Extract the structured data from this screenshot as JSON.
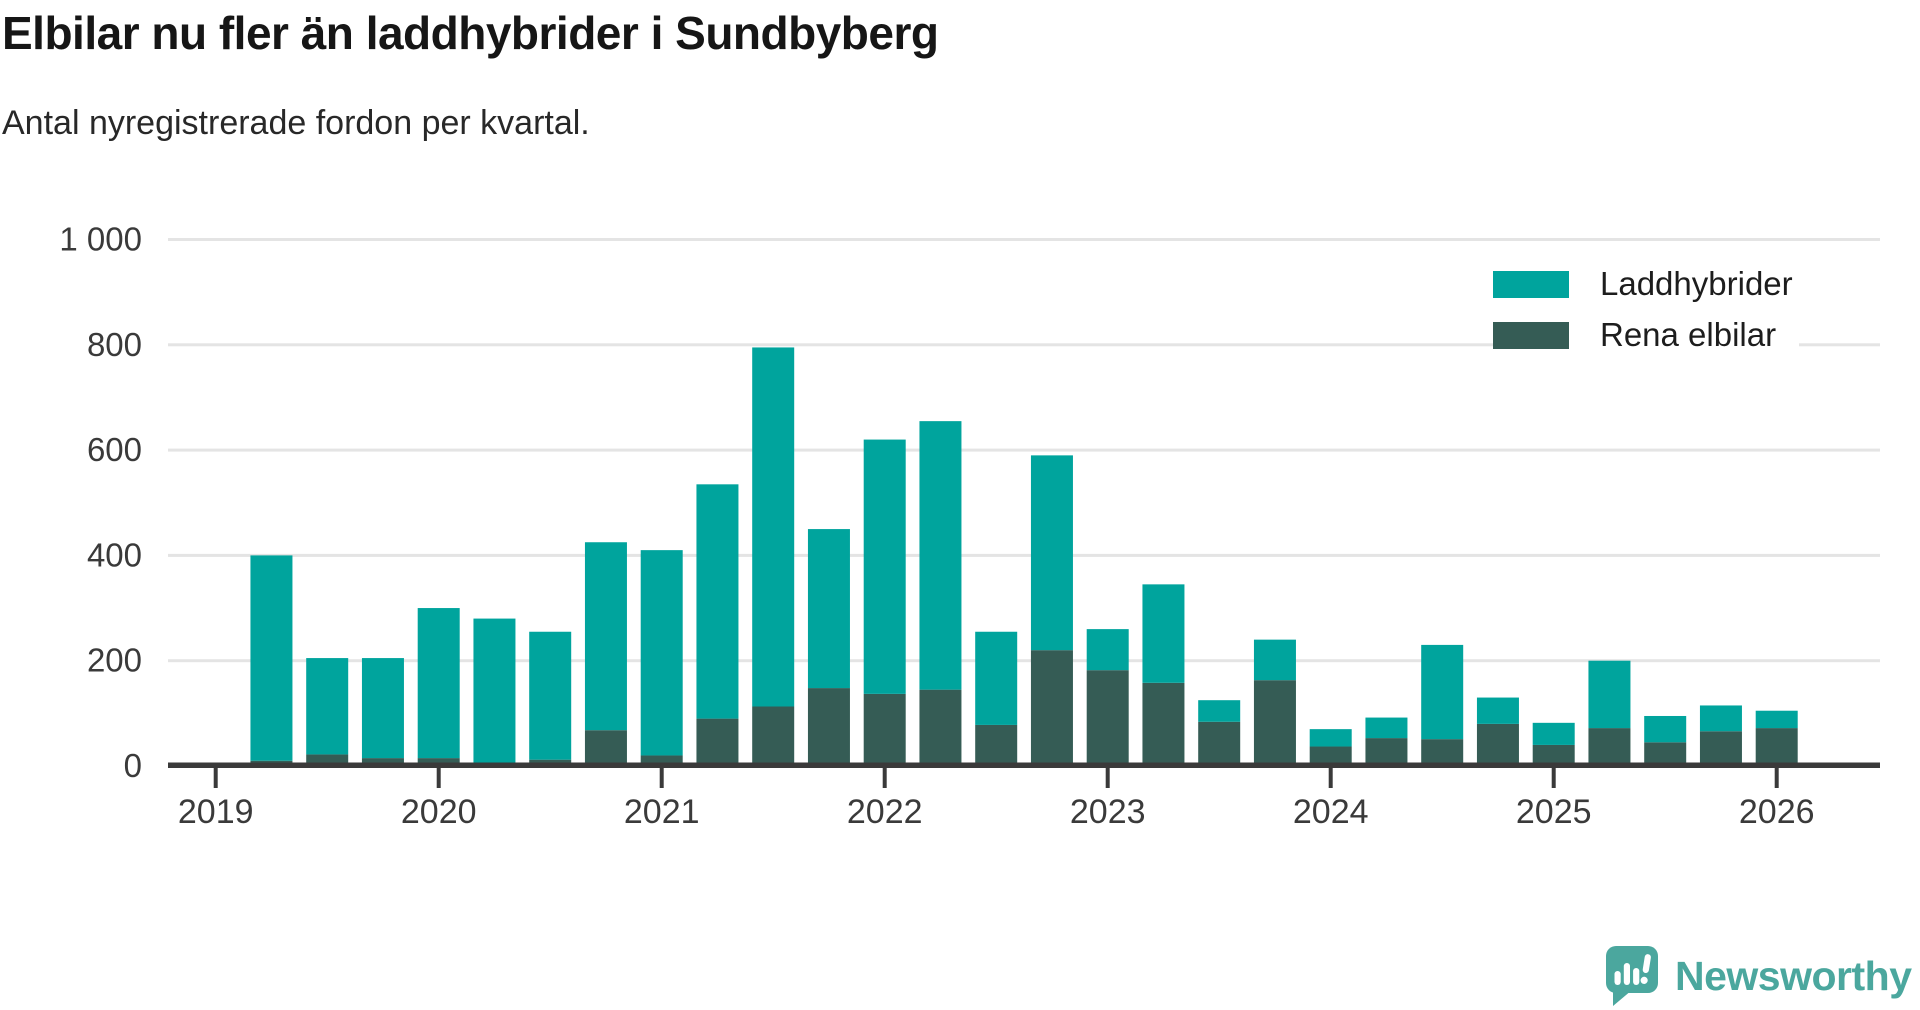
{
  "header": {
    "title": "Elbilar nu fler än laddhybrider i Sundbyberg",
    "subtitle": "Antal nyregistrerade fordon per kvartal."
  },
  "legend": {
    "items": [
      {
        "label": "Laddhybrider",
        "color": "#00a49d"
      },
      {
        "label": "Rena elbilar",
        "color": "#355c55"
      }
    ]
  },
  "y_axis": {
    "ticks": [
      {
        "label": "0",
        "value": 0
      },
      {
        "label": "200",
        "value": 200
      },
      {
        "label": "400",
        "value": 400
      },
      {
        "label": "600",
        "value": 600
      },
      {
        "label": "800",
        "value": 800
      },
      {
        "label": "1 000",
        "value": 1000
      }
    ]
  },
  "x_axis": {
    "years": [
      "2019",
      "2020",
      "2021",
      "2022",
      "2023",
      "2024",
      "2025",
      "2026"
    ]
  },
  "chart_data": {
    "type": "bar",
    "stacked": true,
    "title": "Elbilar nu fler än laddhybrider i Sundbyberg",
    "subtitle": "Antal nyregistrerade fordon per kvartal.",
    "categories": [
      "2019-Q2",
      "2019-Q3",
      "2019-Q4",
      "2020-Q1",
      "2020-Q2",
      "2020-Q3",
      "2020-Q4",
      "2021-Q1",
      "2021-Q2",
      "2021-Q3",
      "2021-Q4",
      "2022-Q1",
      "2022-Q2",
      "2022-Q3",
      "2022-Q4",
      "2023-Q1",
      "2023-Q2",
      "2023-Q3",
      "2023-Q4",
      "2024-Q1",
      "2024-Q2",
      "2024-Q3",
      "2024-Q4",
      "2025-Q1",
      "2025-Q2",
      "2025-Q3",
      "2025-Q4",
      "2026-Q1"
    ],
    "series": [
      {
        "name": "Laddhybrider",
        "color": "#00a49d",
        "values": [
          390,
          183,
          190,
          285,
          274,
          243,
          357,
          390,
          445,
          682,
          302,
          483,
          510,
          177,
          370,
          78,
          187,
          41,
          77,
          33,
          39,
          179,
          50,
          42,
          128,
          50,
          49,
          33
        ]
      },
      {
        "name": "Rena elbilar",
        "color": "#355c55",
        "values": [
          10,
          22,
          15,
          15,
          6,
          12,
          68,
          20,
          90,
          113,
          148,
          137,
          145,
          78,
          220,
          182,
          158,
          84,
          163,
          37,
          53,
          51,
          80,
          40,
          72,
          45,
          66,
          72
        ]
      }
    ],
    "totals": [
      400,
      205,
      205,
      300,
      280,
      255,
      425,
      410,
      535,
      795,
      450,
      620,
      655,
      255,
      590,
      260,
      345,
      125,
      240,
      70,
      92,
      230,
      130,
      82,
      200,
      95,
      115,
      105
    ],
    "ylim": [
      0,
      1050
    ],
    "x_start": 2019.25,
    "x_step": 0.25,
    "grid": true,
    "legend_position": "top-right",
    "colors": {
      "grid": "#e4e4e4",
      "axis": "#3a3a3a",
      "tick_label": "#3a3a3a"
    }
  },
  "branding": {
    "logo_text": "Newsworthy",
    "color": "#4ba79e"
  }
}
